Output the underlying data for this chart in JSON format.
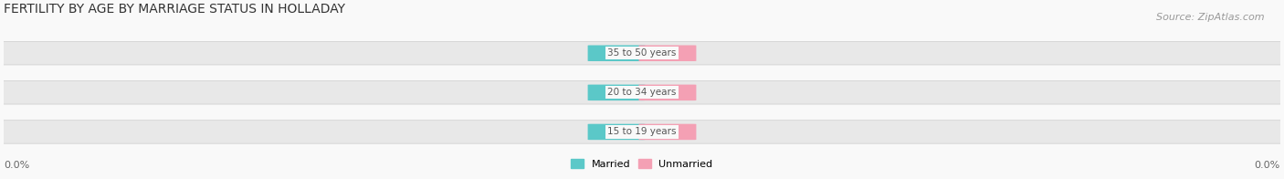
{
  "title": "FERTILITY BY AGE BY MARRIAGE STATUS IN HOLLADAY",
  "source": "Source: ZipAtlas.com",
  "categories": [
    "15 to 19 years",
    "20 to 34 years",
    "35 to 50 years"
  ],
  "married_values": [
    0.0,
    0.0,
    0.0
  ],
  "unmarried_values": [
    0.0,
    0.0,
    0.0
  ],
  "married_color": "#5bc8c8",
  "unmarried_color": "#f4a0b4",
  "bar_bg_color": "#e8e8e8",
  "bar_bg_edge": "#d0d0d0",
  "x_left_label": "0.0%",
  "x_right_label": "0.0%",
  "legend_married": "Married",
  "legend_unmarried": "Unmarried",
  "title_fontsize": 10,
  "source_fontsize": 8,
  "label_fontsize": 8,
  "tick_fontsize": 8,
  "background_color": "#f9f9f9"
}
